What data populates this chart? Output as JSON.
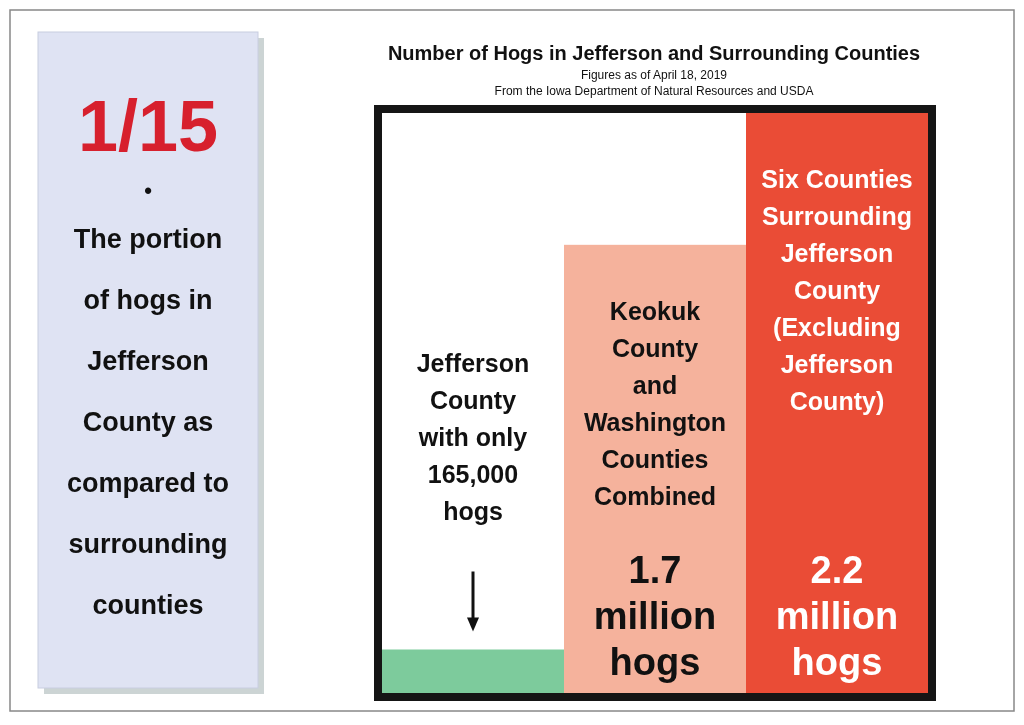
{
  "chart_data": {
    "type": "bar",
    "title": "Number of Hogs in Jefferson and Surrounding Counties",
    "subtitle": "Figures as of April 18, 2019\nFrom the Iowa Department of Natural Resources and USDA",
    "categories": [
      "Jefferson\nCounty\nwith only\n165,000\nhogs",
      "Keokuk\nCounty\nand\nWashington\nCounties\nCombined",
      "Six Counties\nSurrounding\nJefferson\nCounty\n\n(Excluding\nJefferson\nCounty)"
    ],
    "values": [
      165000,
      1700000,
      2200000
    ],
    "colors": [
      "#7dcb9c",
      "#f5b29c",
      "#ea4c36"
    ],
    "value_labels": [
      null,
      "1.7\nmillion\nhogs",
      "2.2\nmillion\nhogs"
    ],
    "ylim": [
      0,
      2200000
    ],
    "annotations": [
      "1/15",
      "•",
      "The portion\nof hogs in\nJefferson\nCounty as\ncompared to\nsurrounding\ncounties"
    ]
  }
}
